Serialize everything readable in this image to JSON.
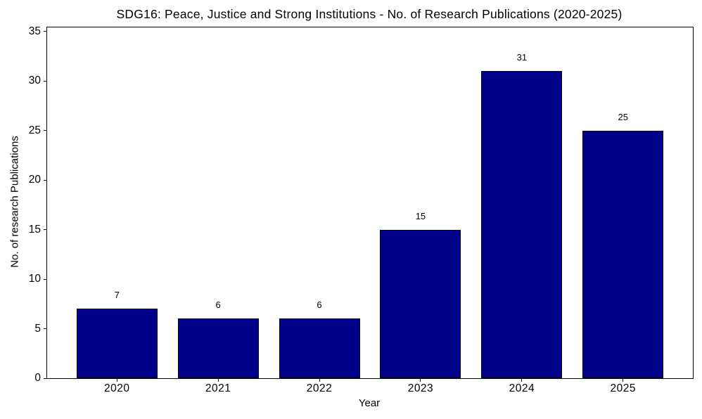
{
  "figure": {
    "background": "#ffffff",
    "text_color": "#000000"
  },
  "chart_data": {
    "type": "bar",
    "title": "SDG16: Peace, Justice and Strong Institutions - No. of Research Publications (2020-2025)",
    "xlabel": "Year",
    "ylabel": "No. of research Publications",
    "categories": [
      "2020",
      "2021",
      "2022",
      "2023",
      "2024",
      "2025"
    ],
    "values": [
      7,
      6,
      6,
      15,
      31,
      25
    ],
    "bar_value_labels": [
      "7",
      "6",
      "6",
      "15",
      "31",
      "25"
    ],
    "yticks": [
      0,
      5,
      10,
      15,
      20,
      25,
      30,
      35
    ],
    "ylim": [
      0,
      35.4
    ],
    "bar_color": "#00008B",
    "bar_edge_color": "#000000",
    "grid": false,
    "legend": false,
    "layout_hints": {
      "bar_relative_width": 0.8,
      "x_edge_padding_units": 0.69,
      "spines": "full-box",
      "tick_direction": "out"
    }
  }
}
